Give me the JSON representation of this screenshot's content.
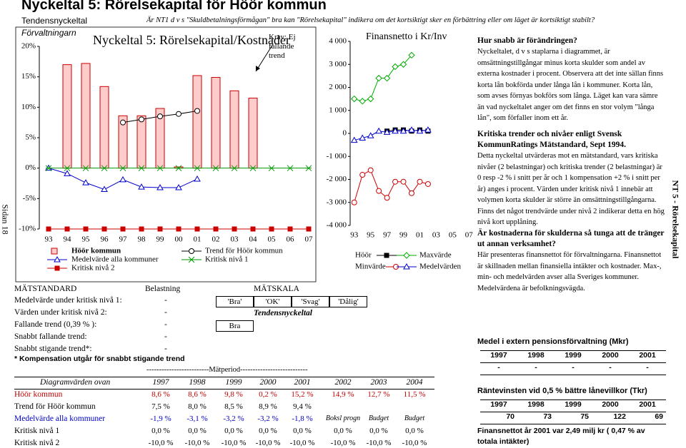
{
  "header": {
    "title": "Nyckeltal 5: Rörelsekapital för Höör kommun",
    "subtitle": "Tendensnyckeltal",
    "question": "Är NT1 d v s \"Skuldbetalningsförmågan\" bra kan \"Rörelsekapital\" indikera om det kortsiktigt sker en förbättring eller om läget är kortsiktigt stabilt?"
  },
  "side_left": "Sidan 18",
  "side_right": "NT 5 - Rörelsekapital",
  "chart_data": [
    {
      "type": "bar",
      "pre_title": "Förvaltningarn",
      "title": "Nyckeltal 5: Rörelsekapital/Kostnader",
      "annotation": "Krav: Ej fallande trend",
      "categories": [
        "93",
        "94",
        "95",
        "96",
        "97",
        "98",
        "99",
        "00",
        "01",
        "02",
        "03",
        "04",
        "05",
        "06",
        "07"
      ],
      "ylim": [
        -10,
        20
      ],
      "yticks": [
        {
          "value": 20,
          "label": "20%"
        },
        {
          "value": 15,
          "label": "15%"
        },
        {
          "value": 10,
          "label": "10%"
        },
        {
          "value": 5,
          "label": "5%"
        },
        {
          "value": 0,
          "label": "0%"
        },
        {
          "value": -5,
          "label": "-5%"
        },
        {
          "value": -10,
          "label": "-10%"
        }
      ],
      "grid": false,
      "series": [
        {
          "name": "Höör kommun",
          "kind": "bar",
          "color": "#ffcccc",
          "stroke": "#cc0000",
          "values": [
            null,
            17.0,
            17.2,
            13.4,
            8.6,
            8.6,
            9.8,
            0.2,
            15.2,
            14.9,
            12.7,
            11.5,
            null,
            null,
            null
          ]
        },
        {
          "name": "Trend för Höör kommun",
          "kind": "line",
          "color": "#000000",
          "marker": "circle",
          "values": [
            null,
            null,
            null,
            null,
            7.5,
            8.0,
            8.5,
            8.9,
            9.4,
            null,
            null,
            null,
            null,
            null,
            null
          ]
        },
        {
          "name": "Medelvärde alla kommuner",
          "kind": "line",
          "color": "#0000cc",
          "marker": "triangle",
          "values": [
            0,
            -0.9,
            -2.4,
            -3.5,
            -1.9,
            -3.1,
            -3.2,
            -3.2,
            -1.8,
            null,
            null,
            null,
            null,
            null,
            null
          ]
        },
        {
          "name": "Kritisk nivå 1",
          "kind": "line",
          "color": "#009900",
          "marker": "x",
          "values": [
            0,
            0,
            0,
            0,
            0,
            0,
            0,
            0,
            0,
            0,
            0,
            0,
            0,
            0,
            0
          ]
        },
        {
          "name": "Kritisk nivå 2",
          "kind": "line",
          "color": "#cc0000",
          "marker": "square",
          "values": [
            -10,
            -10,
            -10,
            -10,
            -10,
            -10,
            -10,
            -10,
            -10,
            -10,
            -10,
            -10,
            -10,
            -10,
            -10
          ]
        }
      ]
    },
    {
      "type": "line",
      "title": "Finansnetto i Kr/Inv",
      "categories": [
        "93",
        null,
        "95",
        null,
        "97",
        null,
        "99",
        null,
        "01",
        null,
        "03",
        null,
        "05",
        null,
        "07"
      ],
      "ylim": [
        -4000,
        4000
      ],
      "yticks": [
        {
          "value": 4000,
          "label": "4 000"
        },
        {
          "value": 3000,
          "label": "3 000"
        },
        {
          "value": 2000,
          "label": "2 000"
        },
        {
          "value": 1000,
          "label": "1 000"
        },
        0,
        {
          "value": -1000,
          "label": "-1 000"
        },
        {
          "value": -2000,
          "label": "-2 000"
        },
        {
          "value": -3000,
          "label": "-3 000"
        },
        {
          "value": -4000,
          "label": "-4 000"
        }
      ],
      "grid": false,
      "series": [
        {
          "name": "Höör",
          "kind": "line",
          "color": "#000000",
          "marker": "square",
          "values": [
            null,
            null,
            null,
            null,
            100,
            150,
            150,
            100,
            150,
            100,
            null,
            null,
            null,
            null,
            null
          ]
        },
        {
          "name": "Maxvärde",
          "kind": "line",
          "color": "#00aa00",
          "marker": "diamond",
          "values": [
            1500,
            1400,
            1500,
            2400,
            2400,
            2900,
            3000,
            3400,
            null,
            null,
            null,
            null,
            null,
            null,
            null
          ]
        },
        {
          "name": "Minvärde",
          "kind": "line",
          "color": "#cc0000",
          "marker": "circle",
          "values": [
            -3000,
            -1800,
            -1600,
            -2500,
            -2800,
            -2100,
            -2100,
            -2600,
            -2100,
            -2200,
            null,
            null,
            null,
            null,
            null
          ]
        },
        {
          "name": "Medelvärden",
          "kind": "line",
          "color": "#0000cc",
          "marker": "triangle",
          "values": [
            -300,
            -200,
            -100,
            100,
            50,
            100,
            100,
            150,
            100,
            150,
            null,
            null,
            null,
            null,
            null
          ]
        }
      ]
    }
  ],
  "notes": [
    {
      "heading": "Hur snabb är förändringen?",
      "body": "Nyckeltalet, d v s staplarna i diagrammet, är omsättningstillgångar minus korta skulder som andel av externa kostnader i procent. Observera att det inte sällan finns korta lån bokförda under långa lån i kommuner. Korta lån, som avses förnyas bokförs som långa. Läget kan vara sämre än vad nyckeltalet anger om det finns en stor volym \"långa lån\", som förfaller inom ett år."
    },
    {
      "heading": "Kritiska trender och nivåer enligt Svensk KommunRatings Mätstandard, Sept 1994.",
      "body": "Detta nyckeltal utvärderas mot en mätstandard, vars kritiska nivåer (2 belastningar) och kritiska trender (2 belastningar) är 0 resp -2 % i snitt per år och 1 kompensation +2 % i snitt per år) anges i procent. Värden under kritisk nivå 1 innebär att volymen korta skulder är större än omsättningstillgångarna. Finns det något trendvärde under nivå 2 indikerar detta en hög nivå kort upplåning."
    },
    {
      "heading": "Är kostnaderna för skulderna så tunga att de tränger ut annan verksamhet?",
      "body": "Här presenteras finansnettot för förvaltningarna. Finansnettot är skillnaden mellan finansiella intäkter och kostnader. Max-, min- och medelvärden avser alla Sveriges kommuner. Medelvärdena är befolkningsvägda."
    }
  ],
  "pension": {
    "title": "Medel i extern pensionsförvaltning (Mkr)",
    "years": [
      "1997",
      "1998",
      "1999",
      "2000",
      "2001"
    ],
    "values": [
      "-",
      "-",
      "-",
      "-",
      "-"
    ]
  },
  "interest": {
    "title": "Räntevinsten vid 0,5 % bättre lånevillkor (Tkr)",
    "years": [
      "1997",
      "1998",
      "1999",
      "2000",
      "2001"
    ],
    "values": [
      70,
      73,
      75,
      122,
      69
    ]
  },
  "footer": "Finansnettot år 2001 var 2,49 milj kr ( 0,47 % av totala intäkter)",
  "measure": {
    "headers": [
      "MÄTSTANDARD",
      "Belastning",
      "MÄTSKALA"
    ],
    "rows": [
      {
        "label": "Medelvärde under kritisk nivå 1:",
        "load": "-"
      },
      {
        "label": "Värden under kritisk nivå 2:",
        "load": "-"
      },
      {
        "label": "Fallande trend (0,39 % ):",
        "load": "-"
      },
      {
        "label": "Snabbt fallande trend:",
        "load": "-"
      },
      {
        "label": "Snabbt stigande trend*:",
        "load": "-"
      }
    ],
    "scale": [
      "'Bra'",
      "'OK'",
      "'Svag'",
      "'Dålig'"
    ],
    "scale_title": "Tendensnyckeltal",
    "rating": "Bra",
    "note": "* Kompensation utgår för snabbt stigande trend"
  },
  "values_table": {
    "period": "-------------------------Mätperiod---------------------------",
    "header": [
      "Diagramvärden ovan",
      "1997",
      "1998",
      "1999",
      "2000",
      "2001",
      "2002",
      "2003",
      "2004"
    ],
    "rows": [
      {
        "label": "Höör kommun",
        "cells": [
          "8,6 %",
          "8,6 %",
          "9,8 %",
          "0,2 %",
          "15,2 %",
          "14,9 %",
          "12,7 %",
          "11,5 %"
        ]
      },
      {
        "label": "Trend för Höör kommun",
        "cells": [
          "7,5 %",
          "8,0 %",
          "8,5 %",
          "8,9 %",
          "9,4 %"
        ]
      },
      {
        "label": "Medelvärde alla kommuner",
        "cells": [
          "-1,9 %",
          "-3,1 %",
          "-3,2 %",
          "-3,2 %",
          "-1,8 %",
          "Boksl progn",
          "Budget",
          "Budget"
        ]
      },
      {
        "label": "Kritisk nivå 1",
        "cells": [
          "0,0 %",
          "0,0 %",
          "0,0 %",
          "0,0 %",
          "0,0 %",
          "0,0 %",
          "0,0 %",
          "0,0 %"
        ]
      },
      {
        "label": "Kritisk nivå 2",
        "cells": [
          "-10,0 %",
          "-10,0 %",
          "-10,0 %",
          "-10,0 %",
          "-10,0 %",
          "-10,0 %",
          "-10,0 %",
          "-10,0 %"
        ]
      }
    ]
  }
}
